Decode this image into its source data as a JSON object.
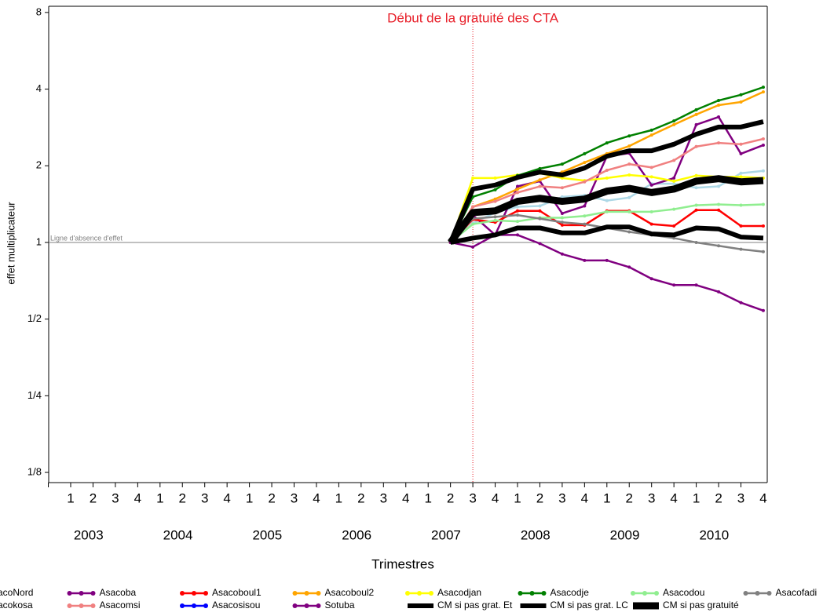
{
  "chart_data": {
    "type": "line",
    "log_scale": "y",
    "log_base": 2,
    "y_axis_label": "effet multiplicateur",
    "x_axis_label": "Trimestres",
    "categories": [
      "1",
      "2",
      "3",
      "4",
      "1",
      "2",
      "3",
      "4",
      "1",
      "2",
      "3",
      "4",
      "1",
      "2",
      "3",
      "4",
      "1",
      "2",
      "3",
      "4",
      "1",
      "2",
      "3",
      "4",
      "1",
      "2",
      "3",
      "4",
      "1",
      "2",
      "3",
      "4"
    ],
    "year_labels": [
      "2003",
      "2004",
      "2005",
      "2006",
      "2007",
      "2008",
      "2009",
      "2010"
    ],
    "ylim": [
      0.114,
      8.46
    ],
    "yticks": [
      8,
      4,
      2,
      1,
      {
        "value": 0.5,
        "label": "1/2"
      },
      {
        "value": 0.25,
        "label": "1/4"
      },
      {
        "value": 0.125,
        "label": "1/8"
      }
    ],
    "reference_line": {
      "value": 1,
      "label": "Ligne d'absence d'effet",
      "color": "#808080"
    },
    "event": {
      "label": "Début de la gratuité des CTA",
      "category_index": 18,
      "color": "#e8202a"
    },
    "series": [
      {
        "name": "AsacoNord",
        "color": "#add8e6",
        "width": 2.5,
        "values": [
          null,
          null,
          null,
          null,
          null,
          null,
          null,
          null,
          null,
          null,
          null,
          null,
          null,
          null,
          null,
          null,
          null,
          1,
          1.19,
          1.31,
          1.38,
          1.39,
          1.51,
          1.53,
          1.46,
          1.5,
          1.7,
          1.7,
          1.64,
          1.66,
          1.87,
          1.91
        ]
      },
      {
        "name": "Asacoba",
        "color": "#800080",
        "width": 2.5,
        "values": [
          null,
          null,
          null,
          null,
          null,
          null,
          null,
          null,
          null,
          null,
          null,
          null,
          null,
          null,
          null,
          null,
          null,
          1,
          1.28,
          1.07,
          1.66,
          1.74,
          1.3,
          1.39,
          2.18,
          2.24,
          1.68,
          1.79,
          2.9,
          3.11,
          2.23,
          2.41
        ]
      },
      {
        "name": "Asacoboul1",
        "color": "#ff0000",
        "width": 2.5,
        "values": [
          null,
          null,
          null,
          null,
          null,
          null,
          null,
          null,
          null,
          null,
          null,
          null,
          null,
          null,
          null,
          null,
          null,
          1,
          1.23,
          1.2,
          1.33,
          1.33,
          1.17,
          1.17,
          1.33,
          1.33,
          1.18,
          1.16,
          1.34,
          1.34,
          1.16,
          1.16
        ]
      },
      {
        "name": "Asacoboul2",
        "color": "#ffa500",
        "width": 2.5,
        "values": [
          null,
          null,
          null,
          null,
          null,
          null,
          null,
          null,
          null,
          null,
          null,
          null,
          null,
          null,
          null,
          null,
          null,
          1,
          1.38,
          1.48,
          1.62,
          1.76,
          1.89,
          2.06,
          2.23,
          2.39,
          2.64,
          2.9,
          3.18,
          3.46,
          3.56,
          3.9
        ]
      },
      {
        "name": "Asacodjan",
        "color": "#ffff00",
        "width": 2.5,
        "values": [
          null,
          null,
          null,
          null,
          null,
          null,
          null,
          null,
          null,
          null,
          null,
          null,
          null,
          null,
          null,
          null,
          null,
          1,
          1.79,
          1.79,
          1.84,
          1.87,
          1.79,
          1.75,
          1.79,
          1.84,
          1.81,
          1.74,
          1.83,
          1.81,
          1.81,
          1.79
        ]
      },
      {
        "name": "Asacodje",
        "color": "#008000",
        "width": 2.5,
        "values": [
          null,
          null,
          null,
          null,
          null,
          null,
          null,
          null,
          null,
          null,
          null,
          null,
          null,
          null,
          null,
          null,
          null,
          1,
          1.51,
          1.61,
          1.83,
          1.95,
          2.03,
          2.23,
          2.46,
          2.62,
          2.76,
          3.0,
          3.32,
          3.61,
          3.8,
          4.07
        ]
      },
      {
        "name": "Asacodou",
        "color": "#90ee90",
        "width": 2.5,
        "values": [
          null,
          null,
          null,
          null,
          null,
          null,
          null,
          null,
          null,
          null,
          null,
          null,
          null,
          null,
          null,
          null,
          null,
          1,
          1.18,
          1.22,
          1.21,
          1.25,
          1.25,
          1.27,
          1.32,
          1.32,
          1.32,
          1.35,
          1.4,
          1.41,
          1.4,
          1.41
        ]
      },
      {
        "name": "Asacofadi",
        "color": "#808080",
        "width": 2.5,
        "values": [
          null,
          null,
          null,
          null,
          null,
          null,
          null,
          null,
          null,
          null,
          null,
          null,
          null,
          null,
          null,
          null,
          null,
          1,
          1.24,
          1.26,
          1.28,
          1.24,
          1.2,
          1.18,
          1.14,
          1.1,
          1.07,
          1.04,
          1.0,
          0.97,
          0.94,
          0.92
        ]
      },
      {
        "name": "Asacokosa",
        "color": "#8b4513",
        "width": 2.5,
        "values": [
          null,
          null,
          null,
          null,
          null,
          null,
          null,
          null,
          null,
          null,
          null,
          null,
          null,
          null,
          null,
          null,
          null,
          null,
          null,
          null,
          null,
          null,
          null,
          null,
          null,
          null,
          null,
          null,
          null,
          null,
          null,
          null
        ]
      },
      {
        "name": "Asacomsi",
        "color": "#f08080",
        "width": 2.5,
        "values": [
          null,
          null,
          null,
          null,
          null,
          null,
          null,
          null,
          null,
          null,
          null,
          null,
          null,
          null,
          null,
          null,
          null,
          1,
          1.38,
          1.45,
          1.57,
          1.66,
          1.64,
          1.73,
          1.92,
          2.03,
          1.97,
          2.1,
          2.38,
          2.46,
          2.43,
          2.55
        ]
      },
      {
        "name": "Asacosisou",
        "color": "#0000ff",
        "width": 2.5,
        "values": [
          null,
          null,
          null,
          null,
          null,
          null,
          null,
          null,
          null,
          null,
          null,
          null,
          null,
          null,
          null,
          null,
          null,
          null,
          null,
          null,
          null,
          null,
          null,
          null,
          null,
          null,
          null,
          null,
          null,
          null,
          null,
          null
        ]
      },
      {
        "name": "Sotuba",
        "color": "#800080",
        "width": 2.5,
        "values": [
          null,
          null,
          null,
          null,
          null,
          null,
          null,
          null,
          null,
          null,
          null,
          null,
          null,
          null,
          null,
          null,
          null,
          1,
          0.96,
          1.07,
          1.07,
          0.99,
          0.9,
          0.85,
          0.85,
          0.8,
          0.72,
          0.68,
          0.68,
          0.64,
          0.58,
          0.54
        ]
      },
      {
        "name": "CM si pas grat. Et",
        "color": "#000000",
        "width": 6,
        "values": [
          null,
          null,
          null,
          null,
          null,
          null,
          null,
          null,
          null,
          null,
          null,
          null,
          null,
          null,
          null,
          null,
          null,
          1,
          1.62,
          1.68,
          1.8,
          1.89,
          1.84,
          1.96,
          2.18,
          2.29,
          2.29,
          2.43,
          2.66,
          2.84,
          2.84,
          2.98
        ]
      },
      {
        "name": "CM si pas grat. LC",
        "color": "#000000",
        "width": 6,
        "values": [
          null,
          null,
          null,
          null,
          null,
          null,
          null,
          null,
          null,
          null,
          null,
          null,
          null,
          null,
          null,
          null,
          null,
          1,
          1.04,
          1.07,
          1.14,
          1.14,
          1.09,
          1.09,
          1.15,
          1.15,
          1.08,
          1.07,
          1.14,
          1.13,
          1.05,
          1.04
        ]
      },
      {
        "name": "CM si pas gratuité",
        "color": "#000000",
        "width": 9,
        "values": [
          null,
          null,
          null,
          null,
          null,
          null,
          null,
          null,
          null,
          null,
          null,
          null,
          null,
          null,
          null,
          null,
          null,
          1,
          1.31,
          1.33,
          1.45,
          1.49,
          1.45,
          1.48,
          1.59,
          1.63,
          1.57,
          1.62,
          1.74,
          1.78,
          1.73,
          1.75
        ]
      }
    ]
  }
}
